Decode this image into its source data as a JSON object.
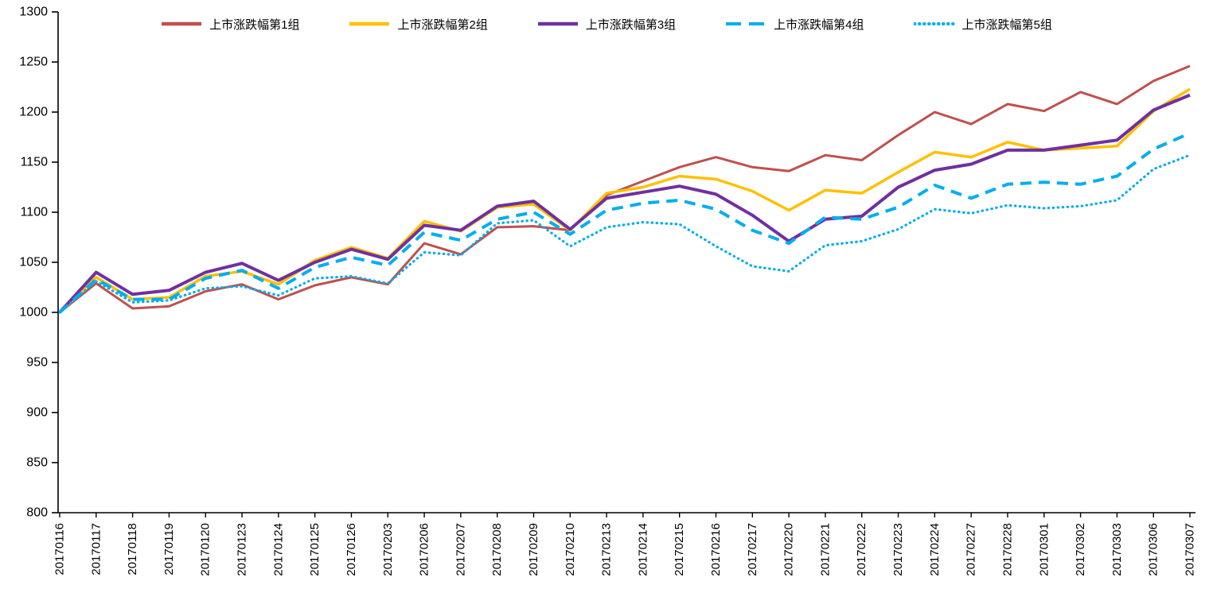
{
  "chart_data": {
    "type": "line",
    "title": "",
    "xlabel": "",
    "ylabel": "",
    "ylim": [
      800,
      1300
    ],
    "ytick_step": 50,
    "yticks": [
      800,
      850,
      900,
      950,
      1000,
      1050,
      1100,
      1150,
      1200,
      1250,
      1300
    ],
    "grid": false,
    "legend_position": "top",
    "axis_color": "#000000",
    "text_color": "#000000",
    "background_color": "#ffffff",
    "categories": [
      "20170116",
      "20170117",
      "20170118",
      "20170119",
      "20170120",
      "20170123",
      "20170124",
      "20170125",
      "20170126",
      "20170203",
      "20170206",
      "20170207",
      "20170208",
      "20170209",
      "20170210",
      "20170213",
      "20170214",
      "20170215",
      "20170216",
      "20170217",
      "20170220",
      "20170221",
      "20170222",
      "20170223",
      "20170224",
      "20170227",
      "20170228",
      "20170301",
      "20170302",
      "20170303",
      "20170306",
      "20170307"
    ],
    "series": [
      {
        "name": "上市涨跌幅第1组",
        "color": "#C0504D",
        "style": "solid",
        "width": 3,
        "values": [
          1000,
          1029,
          1004,
          1006,
          1021,
          1028,
          1013,
          1027,
          1035,
          1028,
          1069,
          1058,
          1085,
          1086,
          1082,
          1117,
          1131,
          1145,
          1155,
          1145,
          1141,
          1157,
          1152,
          1177,
          1200,
          1188,
          1208,
          1201,
          1220,
          1208,
          1231,
          1246
        ]
      },
      {
        "name": "上市涨跌幅第2组",
        "color": "#FFC000",
        "style": "solid",
        "width": 3.5,
        "values": [
          1000,
          1035,
          1013,
          1015,
          1036,
          1041,
          1028,
          1052,
          1065,
          1054,
          1091,
          1081,
          1105,
          1108,
          1082,
          1119,
          1125,
          1136,
          1133,
          1121,
          1102,
          1122,
          1119,
          1140,
          1160,
          1155,
          1170,
          1162,
          1164,
          1166,
          1201,
          1223
        ]
      },
      {
        "name": "上市涨跌幅第3组",
        "color": "#7030A0",
        "style": "solid",
        "width": 4,
        "values": [
          1000,
          1040,
          1018,
          1022,
          1040,
          1049,
          1032,
          1050,
          1063,
          1053,
          1087,
          1082,
          1106,
          1111,
          1083,
          1114,
          1120,
          1126,
          1118,
          1097,
          1071,
          1093,
          1096,
          1125,
          1142,
          1148,
          1162,
          1162,
          1167,
          1172,
          1202,
          1217
        ]
      },
      {
        "name": "上市涨跌幅第4组",
        "color": "#00AEEF",
        "style": "dashed",
        "width": 4,
        "values": [
          1000,
          1033,
          1013,
          1013,
          1034,
          1042,
          1024,
          1045,
          1055,
          1047,
          1080,
          1072,
          1093,
          1100,
          1078,
          1102,
          1109,
          1112,
          1103,
          1082,
          1069,
          1095,
          1093,
          1105,
          1127,
          1114,
          1128,
          1130,
          1128,
          1136,
          1163,
          1179
        ]
      },
      {
        "name": "上市涨跌幅第5组",
        "color": "#00AEEF",
        "style": "dotted",
        "width": 3.2,
        "values": [
          1000,
          1031,
          1010,
          1012,
          1024,
          1026,
          1017,
          1034,
          1036,
          1029,
          1060,
          1057,
          1089,
          1092,
          1066,
          1085,
          1090,
          1088,
          1066,
          1046,
          1041,
          1067,
          1071,
          1083,
          1103,
          1099,
          1107,
          1104,
          1106,
          1112,
          1143,
          1157
        ]
      }
    ]
  }
}
